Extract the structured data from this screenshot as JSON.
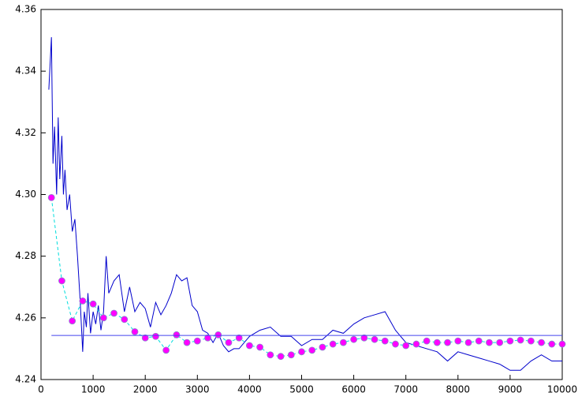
{
  "chart_data": {
    "type": "line",
    "xlim": [
      0,
      10000
    ],
    "xticks": [
      0,
      1000,
      2000,
      3000,
      4000,
      5000,
      6000,
      7000,
      8000,
      9000,
      10000
    ],
    "ylim": [
      4.24,
      4.36
    ],
    "yticks": [
      4.24,
      4.26,
      4.28,
      {
        "value": 4.3,
        "label": "4.30"
      },
      4.32,
      4.34,
      4.36
    ],
    "series": [
      {
        "color": "#0000cc",
        "dash": false,
        "x": [
          150,
          200,
          230,
          260,
          300,
          330,
          360,
          400,
          430,
          460,
          500,
          550,
          600,
          650,
          700,
          750,
          800,
          830,
          870,
          900,
          950,
          1000,
          1050,
          1100,
          1150,
          1200,
          1250,
          1300,
          1400,
          1500,
          1600,
          1700,
          1800,
          1900,
          2000,
          2100,
          2200,
          2300,
          2400,
          2500,
          2600,
          2700,
          2800,
          2900,
          3000,
          3100,
          3200,
          3300,
          3400,
          3500,
          3600,
          3700,
          3800,
          3900,
          4000,
          4200,
          4400,
          4600,
          4800,
          5000,
          5200,
          5400,
          5600,
          5800,
          6000,
          6200,
          6400,
          6600,
          6800,
          7000,
          7200,
          7400,
          7600,
          7800,
          8000,
          8200,
          8400,
          8600,
          8800,
          9000,
          9200,
          9400,
          9600,
          9800,
          10000
        ],
        "values": [
          4.334,
          4.351,
          4.31,
          4.322,
          4.3,
          4.325,
          4.305,
          4.319,
          4.3,
          4.308,
          4.295,
          4.3,
          4.288,
          4.292,
          4.28,
          4.266,
          4.249,
          4.262,
          4.257,
          4.268,
          4.255,
          4.262,
          4.258,
          4.264,
          4.256,
          4.262,
          4.28,
          4.268,
          4.272,
          4.274,
          4.262,
          4.27,
          4.262,
          4.265,
          4.263,
          4.257,
          4.265,
          4.261,
          4.264,
          4.268,
          4.274,
          4.272,
          4.273,
          4.264,
          4.262,
          4.256,
          4.255,
          4.252,
          4.255,
          4.251,
          4.249,
          4.25,
          4.25,
          4.252,
          4.254,
          4.256,
          4.257,
          4.254,
          4.254,
          4.251,
          4.253,
          4.253,
          4.256,
          4.255,
          4.258,
          4.26,
          4.261,
          4.262,
          4.256,
          4.252,
          4.251,
          4.25,
          4.249,
          4.246,
          4.249,
          4.248,
          4.247,
          4.246,
          4.245,
          4.243,
          4.243,
          4.246,
          4.248,
          4.246,
          4.246
        ]
      },
      {
        "color": "#00dddd",
        "dash": true,
        "marker_color": "#ff00ff",
        "x": [
          200,
          400,
          600,
          800,
          1000,
          1200,
          1400,
          1600,
          1800,
          2000,
          2200,
          2400,
          2600,
          2800,
          3000,
          3200,
          3400,
          3600,
          3800,
          4000,
          4200,
          4400,
          4600,
          4800,
          5000,
          5200,
          5400,
          5600,
          5800,
          6000,
          6200,
          6400,
          6600,
          6800,
          7000,
          7200,
          7400,
          7600,
          7800,
          8000,
          8200,
          8400,
          8600,
          8800,
          9000,
          9200,
          9400,
          9600,
          9800,
          10000
        ],
        "values": [
          4.299,
          4.272,
          4.259,
          4.2655,
          4.2645,
          4.26,
          4.2615,
          4.2595,
          4.2555,
          4.2535,
          4.254,
          4.2495,
          4.2545,
          4.252,
          4.2525,
          4.2535,
          4.2545,
          4.252,
          4.2535,
          4.251,
          4.2505,
          4.248,
          4.2475,
          4.248,
          4.249,
          4.2495,
          4.2505,
          4.2515,
          4.252,
          4.253,
          4.2535,
          4.253,
          4.2525,
          4.2515,
          4.251,
          4.2515,
          4.2525,
          4.252,
          4.252,
          4.2525,
          4.252,
          4.2525,
          4.252,
          4.252,
          4.2525,
          4.2528,
          4.2525,
          4.252,
          4.2515,
          4.2515
        ]
      },
      {
        "color": "#4444ee",
        "dash": false,
        "x": [
          200,
          10000
        ],
        "values": [
          4.2543,
          4.2543
        ]
      }
    ]
  }
}
